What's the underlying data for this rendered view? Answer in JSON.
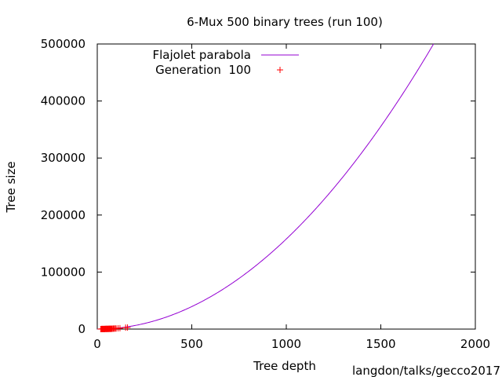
{
  "chart_data": {
    "type": "scatter",
    "title": "6-Mux 500 binary trees (run 100)",
    "xlabel": "Tree depth",
    "ylabel": "Tree size",
    "xlim": [
      0,
      2000
    ],
    "ylim": [
      0,
      500000
    ],
    "xticks": [
      "0",
      "500",
      "1000",
      "1500",
      "2000"
    ],
    "yticks": [
      "0",
      "100000",
      "200000",
      "300000",
      "400000",
      "500000"
    ],
    "xtick_values": [
      0,
      500,
      1000,
      1500,
      2000
    ],
    "ytick_values": [
      0,
      100000,
      200000,
      300000,
      400000,
      500000
    ],
    "grid": false,
    "legend_position": "top-left",
    "annotation": "langdon/talks/gecco2017",
    "series": [
      {
        "name": "Flajolet parabola",
        "kind": "line",
        "color": "#9400d3",
        "coefficient": 0.158,
        "x": [
          0,
          100,
          200,
          300,
          400,
          500,
          600,
          700,
          800,
          900,
          1000,
          1100,
          1200,
          1300,
          1400,
          1500,
          1600,
          1700,
          1778
        ],
        "y": [
          0,
          1580,
          6320,
          14220,
          25280,
          39500,
          56880,
          77420,
          101120,
          127980,
          158000,
          191180,
          227520,
          267020,
          309680,
          355500,
          404480,
          456620,
          499460
        ]
      },
      {
        "name": "Generation  100",
        "kind": "points",
        "marker": "+",
        "color": "#ff0000",
        "x": [
          18,
          22,
          25,
          28,
          30,
          33,
          35,
          38,
          40,
          42,
          45,
          48,
          50,
          52,
          55,
          58,
          60,
          63,
          65,
          68,
          70,
          72,
          75,
          78,
          80,
          85,
          90,
          95,
          100,
          110,
          120,
          150,
          160
        ],
        "y": [
          60,
          90,
          110,
          150,
          130,
          200,
          170,
          250,
          220,
          300,
          280,
          350,
          320,
          400,
          380,
          450,
          420,
          500,
          480,
          560,
          520,
          600,
          580,
          650,
          700,
          800,
          900,
          1000,
          1100,
          1300,
          1500,
          2500,
          2800
        ]
      }
    ]
  }
}
